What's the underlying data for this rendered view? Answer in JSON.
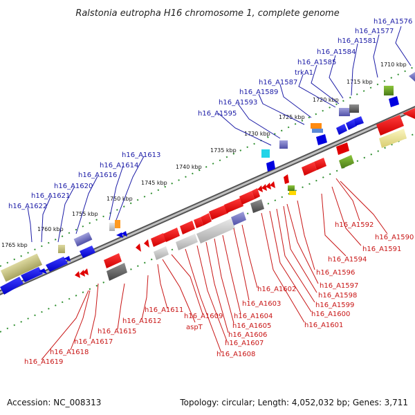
{
  "title": "Ralstonia eutropha H16 chromosome 1, complete genome",
  "footer": {
    "accession": "Accession: NC_008313",
    "topology": "Topology: circular; Length: 4,052,032 bp; Genes: 3,711"
  },
  "colors": {
    "top_label": "#1a1aa6",
    "bottom_label": "#c81414",
    "tick": "#2f8f2f",
    "backbone": "#8c8c8c"
  },
  "kbp_ticks": [
    "1765 kbp",
    "1760 kbp",
    "1755 kbp",
    "1750 kbp",
    "1745 kbp",
    "1740 kbp",
    "1735 kbp",
    "1730 kbp",
    "1725 kbp",
    "1720 kbp",
    "1715 kbp",
    "1710 kbp"
  ],
  "top_labels": [
    "h16_A1576",
    "h16_A1577",
    "h16_A1581",
    "h16_A1584",
    "h16_A1585",
    "trkA1",
    "h16_A1587",
    "h16_A1589",
    "h16_A1593",
    "h16_A1595",
    "h16_A1613",
    "h16_A1614",
    "h16_A1616",
    "h16_A1620",
    "h16_A1621",
    "h16_A1622"
  ],
  "bottom_labels": [
    "h16_A1592",
    "h16_A1590",
    "h16_A1591",
    "h16_A1594",
    "h16_A1596",
    "h16_A1597",
    "h16_A1598",
    "h16_A1599",
    "h16_A1600",
    "h16_A1601",
    "h16_A1602",
    "h16_A1603",
    "h16_A1604",
    "h16_A1605",
    "h16_A1606",
    "h16_A1607",
    "h16_A1608",
    "h16_A1609",
    "aspT",
    "h16_A1611",
    "h16_A1612",
    "h16_A1615",
    "h16_A1617",
    "h16_A1618",
    "h16_A1619"
  ]
}
